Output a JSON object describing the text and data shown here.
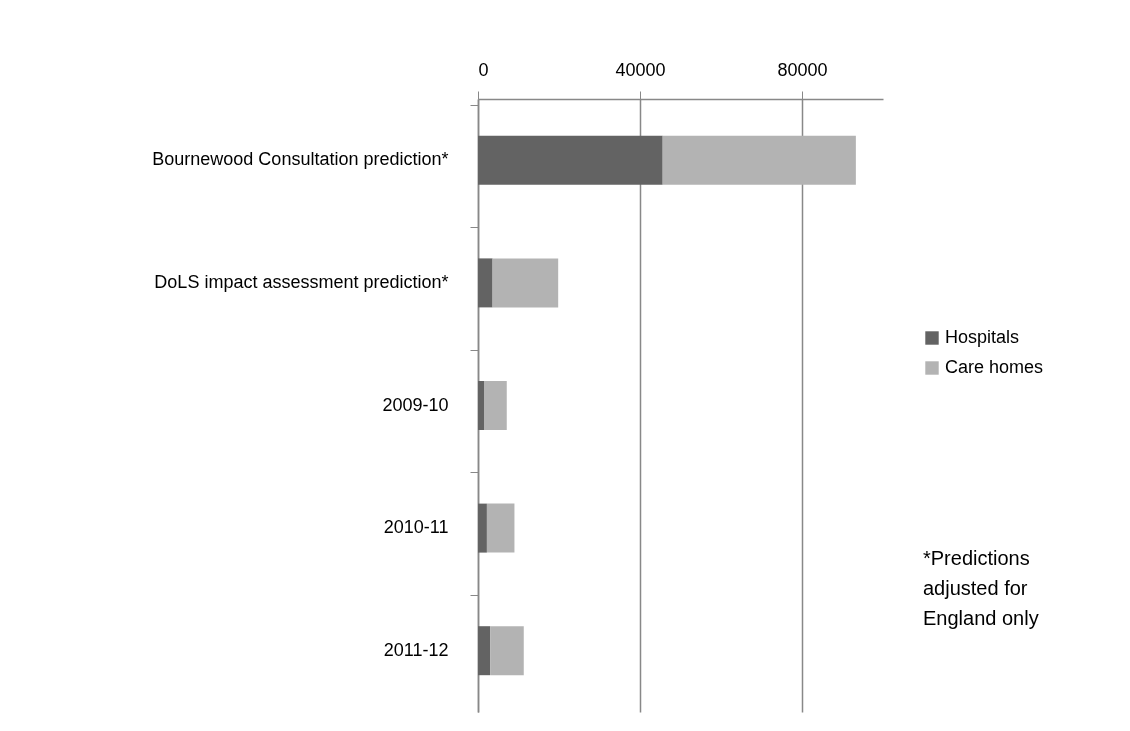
{
  "chart_data": {
    "type": "bar",
    "orientation": "horizontal",
    "stacked": true,
    "categories": [
      "Bournewood Consultation prediction*",
      "DoLS impact assessment prediction*",
      "2009-10",
      "2010-11",
      "2011-12"
    ],
    "series": [
      {
        "name": "Hospitals",
        "color": "#636363",
        "values": [
          45600,
          3600,
          1600,
          2200,
          3000
        ]
      },
      {
        "name": "Care homes",
        "color": "#b3b3b3",
        "values": [
          47700,
          16200,
          5500,
          6800,
          8300
        ]
      }
    ],
    "xlim": [
      0,
      100000
    ],
    "xticks": [
      0,
      40000,
      80000
    ],
    "grid": "x",
    "legend": "right",
    "annotations": [
      "*Predictions\nadjusted for\nEngland only"
    ]
  }
}
